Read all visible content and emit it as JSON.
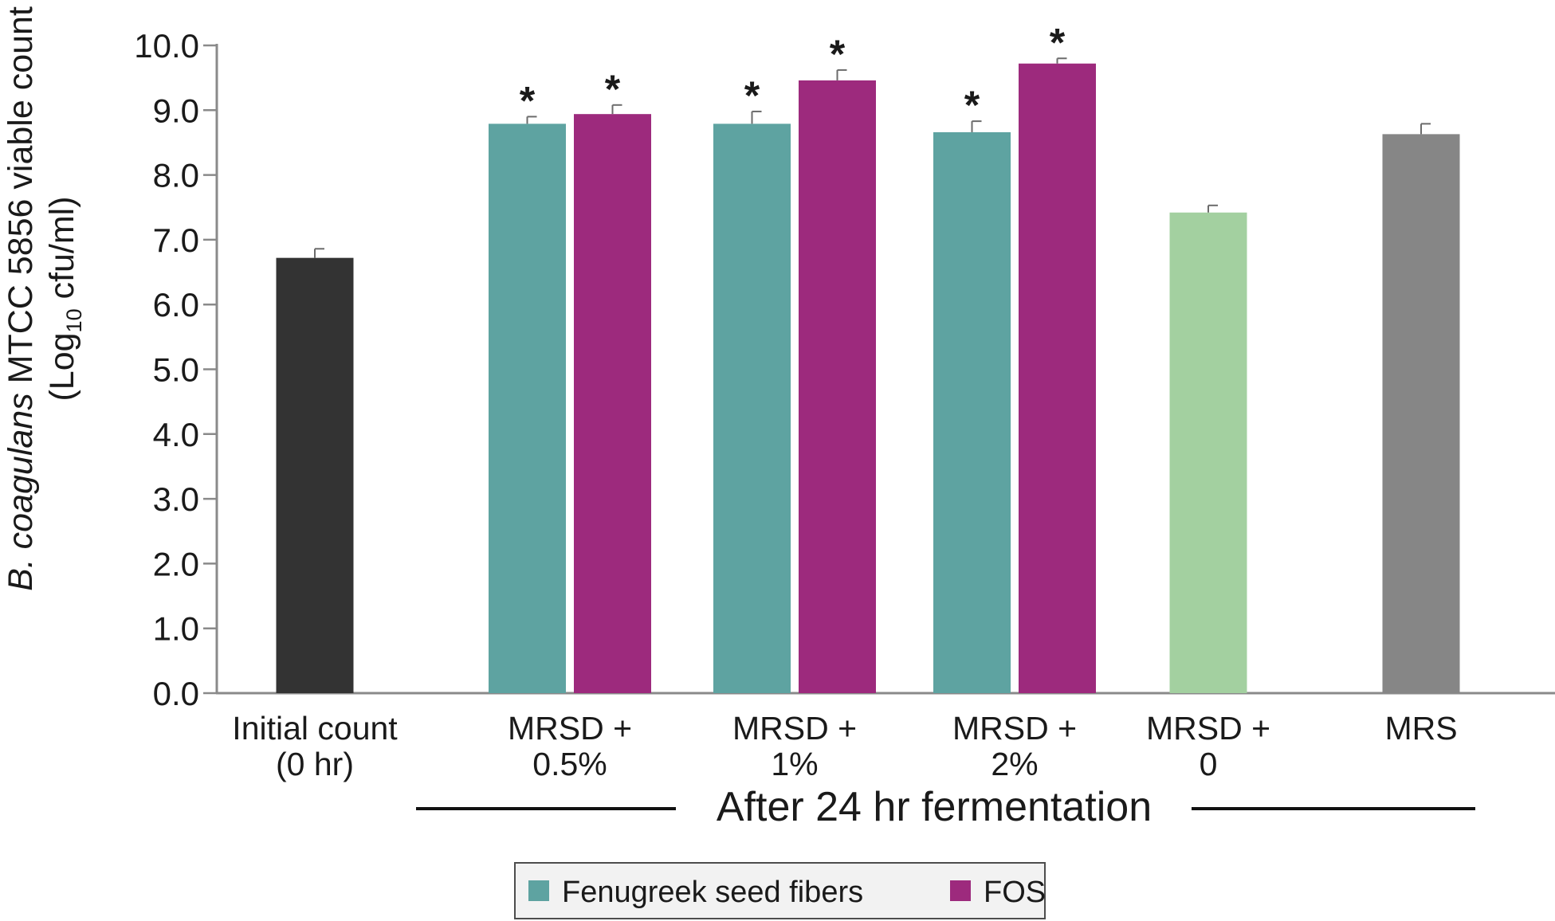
{
  "chart_data": {
    "type": "bar",
    "ylabel": {
      "species": "B. coagulans",
      "strain": " MTCC 5856 viable count",
      "unit_prefix": "(Log",
      "unit_sub": "10",
      "unit_suffix": " cfu/ml)"
    },
    "ylim": [
      0,
      10
    ],
    "yticks": [
      "0.0",
      "1.0",
      "2.0",
      "3.0",
      "4.0",
      "5.0",
      "6.0",
      "7.0",
      "8.0",
      "9.0",
      "10.0"
    ],
    "group_label": "After 24 hr fermentation",
    "categories": [
      {
        "lines": [
          "Initial count",
          "(0 hr)"
        ]
      },
      {
        "lines": [
          "MRSD +",
          "0.5%"
        ]
      },
      {
        "lines": [
          "MRSD +",
          "1%"
        ]
      },
      {
        "lines": [
          "MRSD +",
          "2%"
        ]
      },
      {
        "lines": [
          "MRSD +",
          "0"
        ]
      },
      {
        "lines": [
          "MRS"
        ]
      }
    ],
    "bars": [
      {
        "category": 0,
        "slot": "single",
        "value": 6.72,
        "error": 0.14,
        "color": "#333333",
        "marker": ""
      },
      {
        "category": 1,
        "slot": "left",
        "value": 8.79,
        "error": 0.11,
        "color": "#5ea3a1",
        "marker": "*"
      },
      {
        "category": 1,
        "slot": "right",
        "value": 8.94,
        "error": 0.14,
        "color": "#9d2a7d",
        "marker": "*"
      },
      {
        "category": 2,
        "slot": "left",
        "value": 8.79,
        "error": 0.19,
        "color": "#5ea3a1",
        "marker": "*"
      },
      {
        "category": 2,
        "slot": "right",
        "value": 9.46,
        "error": 0.16,
        "color": "#9d2a7d",
        "marker": "*"
      },
      {
        "category": 3,
        "slot": "left",
        "value": 8.66,
        "error": 0.17,
        "color": "#5ea3a1",
        "marker": "*"
      },
      {
        "category": 3,
        "slot": "right",
        "value": 9.72,
        "error": 0.08,
        "color": "#9d2a7d",
        "marker": "*"
      },
      {
        "category": 4,
        "slot": "single",
        "value": 7.42,
        "error": 0.11,
        "color": "#a3d0a0",
        "marker": ""
      },
      {
        "category": 5,
        "slot": "single",
        "value": 8.63,
        "error": 0.16,
        "color": "#868686",
        "marker": ""
      }
    ],
    "legend": [
      {
        "name": "Fenugreek seed fibers",
        "color": "#5ea3a1"
      },
      {
        "name": "FOS",
        "color": "#9d2a7d"
      }
    ],
    "legend_placement": "bottom-center",
    "grid": false
  }
}
